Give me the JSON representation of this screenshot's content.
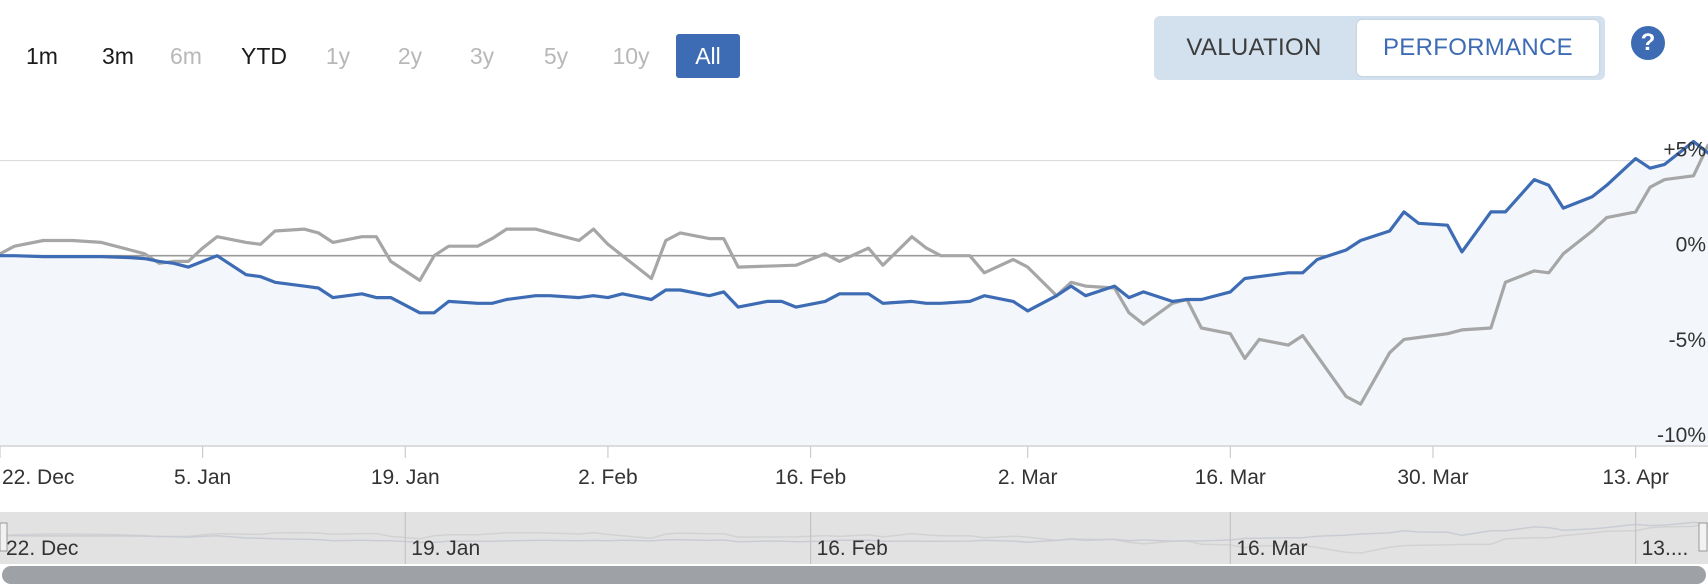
{
  "range_selector": {
    "buttons": [
      {
        "label": "1m",
        "state": "enabled"
      },
      {
        "label": "3m",
        "state": "enabled"
      },
      {
        "label": "6m",
        "state": "disabled"
      },
      {
        "label": "YTD",
        "state": "enabled"
      },
      {
        "label": "1y",
        "state": "disabled"
      },
      {
        "label": "2y",
        "state": "disabled"
      },
      {
        "label": "3y",
        "state": "disabled"
      },
      {
        "label": "5y",
        "state": "disabled"
      },
      {
        "label": "10y",
        "state": "disabled"
      },
      {
        "label": "All",
        "state": "selected"
      }
    ]
  },
  "view_toggle": {
    "valuation_label": "VALUATION",
    "performance_label": "PERFORMANCE",
    "active": "performance"
  },
  "help": {
    "label": "?"
  },
  "colors": {
    "accent": "#3d6cb4",
    "series_primary": "#3d6cb4",
    "series_secondary": "#a6a6a6",
    "area_fill": "#f3f6fa",
    "grid": "#dcdcdc",
    "zero_line": "#9a9a9a",
    "navigator_bg": "#e2e2e2",
    "scrollbar": "#9ea2a7"
  },
  "chart_data": {
    "type": "line",
    "title": "",
    "xlabel": "",
    "ylabel": "",
    "x_range": [
      "2023-12-22",
      "2024-04-18"
    ],
    "ylim": [
      -10,
      6.5
    ],
    "y_ticks": [
      {
        "value": 5,
        "label": "+5%"
      },
      {
        "value": 0,
        "label": "0%"
      },
      {
        "value": -5,
        "label": "-5%"
      },
      {
        "value": -10,
        "label": "-10%"
      }
    ],
    "x_ticks": [
      {
        "date": "2023-12-22",
        "label": "22. Dec"
      },
      {
        "date": "2024-01-05",
        "label": "5. Jan"
      },
      {
        "date": "2024-01-19",
        "label": "19. Jan"
      },
      {
        "date": "2024-02-02",
        "label": "2. Feb"
      },
      {
        "date": "2024-02-16",
        "label": "16. Feb"
      },
      {
        "date": "2024-03-02",
        "label": "2. Mar"
      },
      {
        "date": "2024-03-16",
        "label": "16. Mar"
      },
      {
        "date": "2024-03-30",
        "label": "30. Mar"
      },
      {
        "date": "2024-04-13",
        "label": "13. Apr"
      }
    ],
    "grid": true,
    "legend": "none",
    "series": [
      {
        "points": [
          [
            "2023-12-22",
            0.0
          ],
          [
            "2023-12-23",
            0.0
          ],
          [
            "2023-12-25",
            -0.05
          ],
          [
            "2023-12-27",
            -0.05
          ],
          [
            "2023-12-29",
            -0.05
          ],
          [
            "2023-12-31",
            -0.1
          ],
          [
            "2024-01-01",
            -0.15
          ],
          [
            "2024-01-02",
            -0.3
          ],
          [
            "2024-01-03",
            -0.4
          ],
          [
            "2024-01-04",
            -0.6
          ],
          [
            "2024-01-05",
            -0.3
          ],
          [
            "2024-01-06",
            0.0
          ],
          [
            "2024-01-08",
            -1.0
          ],
          [
            "2024-01-09",
            -1.1
          ],
          [
            "2024-01-10",
            -1.4
          ],
          [
            "2024-01-12",
            -1.6
          ],
          [
            "2024-01-13",
            -1.7
          ],
          [
            "2024-01-14",
            -2.2
          ],
          [
            "2024-01-16",
            -2.0
          ],
          [
            "2024-01-17",
            -2.2
          ],
          [
            "2024-01-18",
            -2.2
          ],
          [
            "2024-01-20",
            -3.0
          ],
          [
            "2024-01-21",
            -3.0
          ],
          [
            "2024-01-22",
            -2.4
          ],
          [
            "2024-01-24",
            -2.5
          ],
          [
            "2024-01-25",
            -2.5
          ],
          [
            "2024-01-26",
            -2.3
          ],
          [
            "2024-01-28",
            -2.1
          ],
          [
            "2024-01-29",
            -2.1
          ],
          [
            "2024-01-31",
            -2.2
          ],
          [
            "2024-02-01",
            -2.1
          ],
          [
            "2024-02-02",
            -2.2
          ],
          [
            "2024-02-03",
            -2.0
          ],
          [
            "2024-02-05",
            -2.3
          ],
          [
            "2024-02-06",
            -1.8
          ],
          [
            "2024-02-07",
            -1.8
          ],
          [
            "2024-02-09",
            -2.1
          ],
          [
            "2024-02-10",
            -1.9
          ],
          [
            "2024-02-11",
            -2.7
          ],
          [
            "2024-02-13",
            -2.4
          ],
          [
            "2024-02-14",
            -2.4
          ],
          [
            "2024-02-15",
            -2.7
          ],
          [
            "2024-02-17",
            -2.4
          ],
          [
            "2024-02-18",
            -2.0
          ],
          [
            "2024-02-20",
            -2.0
          ],
          [
            "2024-02-21",
            -2.5
          ],
          [
            "2024-02-23",
            -2.4
          ],
          [
            "2024-02-24",
            -2.5
          ],
          [
            "2024-02-25",
            -2.5
          ],
          [
            "2024-02-27",
            -2.4
          ],
          [
            "2024-02-28",
            -2.1
          ],
          [
            "2024-03-01",
            -2.4
          ],
          [
            "2024-03-02",
            -2.9
          ],
          [
            "2024-03-04",
            -2.1
          ],
          [
            "2024-03-05",
            -1.6
          ],
          [
            "2024-03-06",
            -2.1
          ],
          [
            "2024-03-08",
            -1.6
          ],
          [
            "2024-03-09",
            -2.2
          ],
          [
            "2024-03-10",
            -1.9
          ],
          [
            "2024-03-12",
            -2.4
          ],
          [
            "2024-03-13",
            -2.3
          ],
          [
            "2024-03-14",
            -2.3
          ],
          [
            "2024-03-16",
            -1.9
          ],
          [
            "2024-03-17",
            -1.2
          ],
          [
            "2024-03-18",
            -1.1
          ],
          [
            "2024-03-20",
            -0.9
          ],
          [
            "2024-03-21",
            -0.9
          ],
          [
            "2024-03-22",
            -0.2
          ],
          [
            "2024-03-24",
            0.3
          ],
          [
            "2024-03-25",
            0.8
          ],
          [
            "2024-03-27",
            1.3
          ],
          [
            "2024-03-28",
            2.3
          ],
          [
            "2024-03-29",
            1.7
          ],
          [
            "2024-03-31",
            1.6
          ],
          [
            "2024-04-01",
            0.2
          ],
          [
            "2024-04-03",
            2.3
          ],
          [
            "2024-04-04",
            2.3
          ],
          [
            "2024-04-06",
            4.0
          ],
          [
            "2024-04-07",
            3.7
          ],
          [
            "2024-04-08",
            2.5
          ],
          [
            "2024-04-10",
            3.1
          ],
          [
            "2024-04-11",
            3.7
          ],
          [
            "2024-04-13",
            5.1
          ],
          [
            "2024-04-14",
            4.6
          ],
          [
            "2024-04-15",
            4.8
          ],
          [
            "2024-04-17",
            6.0
          ],
          [
            "2024-04-18",
            5.4
          ]
        ]
      },
      {
        "points": [
          [
            "2023-12-22",
            0.1
          ],
          [
            "2023-12-23",
            0.5
          ],
          [
            "2023-12-25",
            0.8
          ],
          [
            "2023-12-27",
            0.8
          ],
          [
            "2023-12-29",
            0.7
          ],
          [
            "2023-12-31",
            0.3
          ],
          [
            "2024-01-01",
            0.1
          ],
          [
            "2024-01-02",
            -0.4
          ],
          [
            "2024-01-03",
            -0.3
          ],
          [
            "2024-01-04",
            -0.3
          ],
          [
            "2024-01-05",
            0.4
          ],
          [
            "2024-01-06",
            1.0
          ],
          [
            "2024-01-08",
            0.7
          ],
          [
            "2024-01-09",
            0.6
          ],
          [
            "2024-01-10",
            1.3
          ],
          [
            "2024-01-12",
            1.4
          ],
          [
            "2024-01-13",
            1.2
          ],
          [
            "2024-01-14",
            0.7
          ],
          [
            "2024-01-16",
            1.0
          ],
          [
            "2024-01-17",
            1.0
          ],
          [
            "2024-01-18",
            -0.3
          ],
          [
            "2024-01-20",
            -1.3
          ],
          [
            "2024-01-21",
            0.0
          ],
          [
            "2024-01-22",
            0.5
          ],
          [
            "2024-01-24",
            0.5
          ],
          [
            "2024-01-25",
            0.9
          ],
          [
            "2024-01-26",
            1.4
          ],
          [
            "2024-01-28",
            1.4
          ],
          [
            "2024-01-29",
            1.2
          ],
          [
            "2024-01-31",
            0.8
          ],
          [
            "2024-02-01",
            1.4
          ],
          [
            "2024-02-02",
            0.6
          ],
          [
            "2024-02-03",
            0.0
          ],
          [
            "2024-02-05",
            -1.2
          ],
          [
            "2024-02-06",
            0.8
          ],
          [
            "2024-02-07",
            1.2
          ],
          [
            "2024-02-09",
            0.9
          ],
          [
            "2024-02-10",
            0.9
          ],
          [
            "2024-02-11",
            -0.6
          ],
          [
            "2024-02-15",
            -0.5
          ],
          [
            "2024-02-17",
            0.1
          ],
          [
            "2024-02-18",
            -0.3
          ],
          [
            "2024-02-20",
            0.4
          ],
          [
            "2024-02-21",
            -0.5
          ],
          [
            "2024-02-23",
            1.0
          ],
          [
            "2024-02-24",
            0.4
          ],
          [
            "2024-02-25",
            0.0
          ],
          [
            "2024-02-27",
            0.0
          ],
          [
            "2024-02-28",
            -0.9
          ],
          [
            "2024-03-01",
            -0.2
          ],
          [
            "2024-03-02",
            -0.6
          ],
          [
            "2024-03-04",
            -2.1
          ],
          [
            "2024-03-05",
            -1.4
          ],
          [
            "2024-03-06",
            -1.6
          ],
          [
            "2024-03-08",
            -1.7
          ],
          [
            "2024-03-09",
            -3.0
          ],
          [
            "2024-03-10",
            -3.6
          ],
          [
            "2024-03-12",
            -2.5
          ],
          [
            "2024-03-13",
            -2.3
          ],
          [
            "2024-03-14",
            -3.8
          ],
          [
            "2024-03-16",
            -4.1
          ],
          [
            "2024-03-17",
            -5.4
          ],
          [
            "2024-03-18",
            -4.4
          ],
          [
            "2024-03-20",
            -4.7
          ],
          [
            "2024-03-21",
            -4.2
          ],
          [
            "2024-03-24",
            -7.4
          ],
          [
            "2024-03-25",
            -7.8
          ],
          [
            "2024-03-27",
            -5.1
          ],
          [
            "2024-03-28",
            -4.4
          ],
          [
            "2024-03-29",
            -4.3
          ],
          [
            "2024-03-31",
            -4.1
          ],
          [
            "2024-04-01",
            -3.9
          ],
          [
            "2024-04-03",
            -3.8
          ],
          [
            "2024-04-04",
            -1.4
          ],
          [
            "2024-04-06",
            -0.8
          ],
          [
            "2024-04-07",
            -0.9
          ],
          [
            "2024-04-08",
            0.1
          ],
          [
            "2024-04-10",
            1.3
          ],
          [
            "2024-04-11",
            2.0
          ],
          [
            "2024-04-13",
            2.3
          ],
          [
            "2024-04-14",
            3.6
          ],
          [
            "2024-04-15",
            4.0
          ],
          [
            "2024-04-17",
            4.2
          ],
          [
            "2024-04-18",
            5.8
          ]
        ]
      }
    ]
  },
  "navigator": {
    "labels": [
      {
        "date": "2023-12-22",
        "label": "22. Dec"
      },
      {
        "date": "2024-01-19",
        "label": "19. Jan"
      },
      {
        "date": "2024-02-16",
        "label": "16. Feb"
      },
      {
        "date": "2024-03-16",
        "label": "16. Mar"
      },
      {
        "date": "2024-04-13",
        "label": "13...."
      }
    ]
  }
}
